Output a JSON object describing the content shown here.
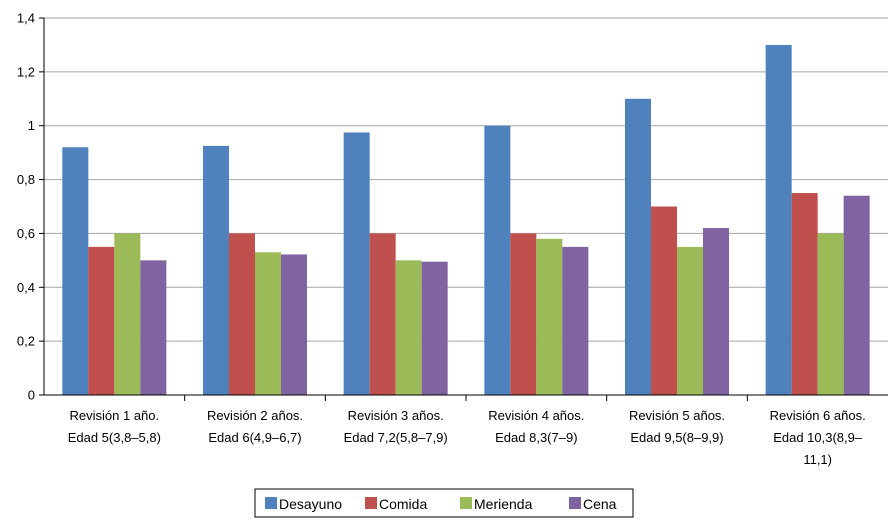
{
  "chart_data": {
    "type": "bar",
    "title": "",
    "xlabel": "",
    "ylabel": "",
    "ylim": [
      0,
      1.4
    ],
    "yticks": [
      "0",
      "0,2",
      "0,4",
      "0,6",
      "0,8",
      "1",
      "1,2",
      "1,4"
    ],
    "grid": true,
    "legend_position": "bottom",
    "categories": [
      [
        "Revisión 1 año.",
        "Edad 5(3,8–5,8)"
      ],
      [
        "Revisión 2 años.",
        "Edad 6(4,9–6,7)"
      ],
      [
        "Revisión 3 años.",
        "Edad 7,2(5,8–7,9)"
      ],
      [
        "Revisión 4 años.",
        "Edad 8,3(7–9)"
      ],
      [
        "Revisión 5 años.",
        "Edad 9,5(8–9,9)"
      ],
      [
        "Revisión 6 años.",
        "Edad 10,3(8,9–",
        "11,1)"
      ]
    ],
    "series": [
      {
        "name": "Desayuno",
        "color": "#4f81bd",
        "values": [
          0.92,
          0.925,
          0.975,
          1.0,
          1.1,
          1.3
        ]
      },
      {
        "name": "Comida",
        "color": "#c0504d",
        "values": [
          0.55,
          0.6,
          0.6,
          0.6,
          0.7,
          0.75
        ]
      },
      {
        "name": "Merienda",
        "color": "#9bbb59",
        "values": [
          0.6,
          0.53,
          0.5,
          0.58,
          0.55,
          0.6
        ]
      },
      {
        "name": "Cena",
        "color": "#8064a2",
        "values": [
          0.5,
          0.522,
          0.495,
          0.55,
          0.62,
          0.74
        ]
      }
    ]
  }
}
